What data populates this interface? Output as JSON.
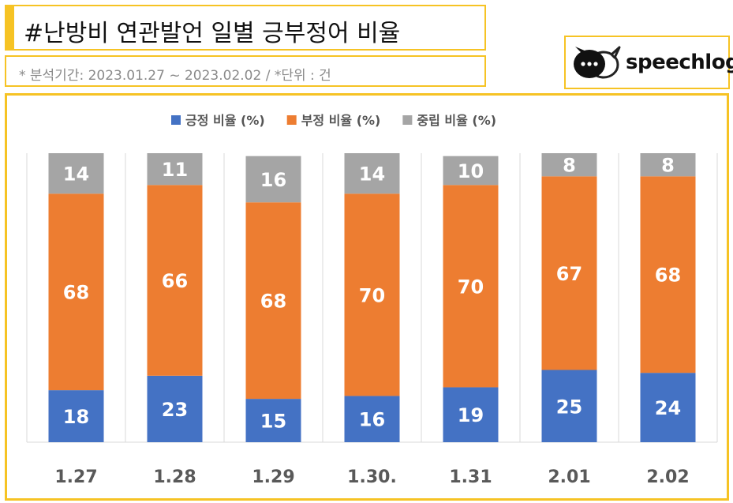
{
  "header": {
    "title": "#난방비 연관발언 일별 긍부정어 비율",
    "subtitle": "* 분석기간: 2023.01.27 ~ 2023.02.02 / *단위 : 건"
  },
  "logo": {
    "text": "speechlog",
    "icon": "speech-bubbles-icon"
  },
  "colors": {
    "positive": "#4472c4",
    "negative": "#ed7d31",
    "neutral": "#a5a5a5",
    "accent": "#f6c324"
  },
  "chart_data": {
    "type": "bar",
    "stacked": true,
    "categories": [
      "1.27",
      "1.28",
      "1.29",
      "1.30.",
      "1.31",
      "2.01",
      "2.02"
    ],
    "series": [
      {
        "name": "긍정 비율 (%)",
        "values": [
          18,
          23,
          15,
          16,
          19,
          25,
          24
        ]
      },
      {
        "name": "부정 비율 (%)",
        "values": [
          68,
          66,
          68,
          70,
          70,
          67,
          68
        ]
      },
      {
        "name": "중립 비율 (%)",
        "values": [
          14,
          11,
          16,
          14,
          10,
          8,
          8
        ]
      }
    ],
    "ylim": [
      0,
      100
    ],
    "legend": "top",
    "grid": "vertical"
  }
}
